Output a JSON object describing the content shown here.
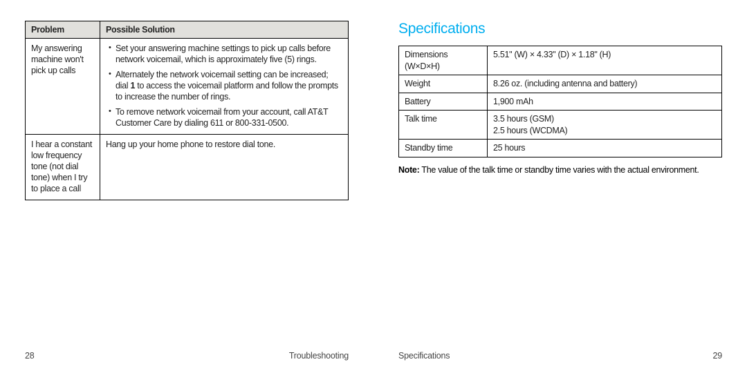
{
  "left": {
    "pageNum": "28",
    "footerLabel": "Troubleshooting",
    "headers": {
      "problem": "Problem",
      "solution": "Possible Solution"
    },
    "rows": [
      {
        "problem": "My answering machine won't pick up calls",
        "bullets": [
          {
            "pre": "Set your answering machine settings to pick up calls before network voicemail, which is approximately five (5) rings."
          },
          {
            "pre": "Alternately the network voicemail setting can be increased; dial ",
            "bold": "1",
            "post": " to access the voicemail platform and follow the prompts to increase the number of rings."
          },
          {
            "pre": "To remove network voicemail from your account, call AT&T Customer Care by dialing 611 or 800-331-0500."
          }
        ]
      },
      {
        "problem": "I hear a constant low frequency tone (not dial tone) when I try to place a call",
        "plain": "Hang up your home phone to restore dial tone."
      }
    ]
  },
  "right": {
    "pageNum": "29",
    "footerLabel": "Specifications",
    "title": "Specifications",
    "rows": [
      {
        "k": "Dimensions (W×D×H)",
        "v": "5.51\" (W) × 4.33\" (D) × 1.18\" (H)"
      },
      {
        "k": "Weight",
        "v": "8.26 oz. (including antenna and battery)"
      },
      {
        "k": "Battery",
        "v": "1,900 mAh"
      },
      {
        "k": "Talk time",
        "v": "3.5 hours (GSM)\n2.5 hours (WCDMA)"
      },
      {
        "k": "Standby time",
        "v": "25 hours"
      }
    ],
    "noteLabel": "Note:",
    "noteText": " The value of the talk time or standby time varies with the actual environment."
  }
}
